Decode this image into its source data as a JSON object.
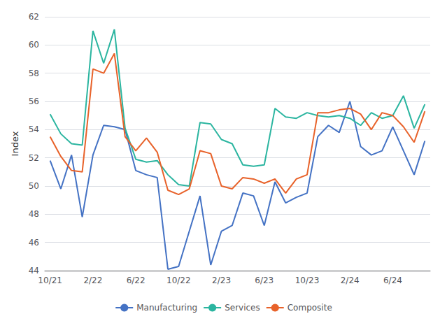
{
  "chart_data": {
    "type": "line",
    "ylabel": "Index",
    "categories": [
      "10/21",
      null,
      null,
      null,
      "2/22",
      null,
      null,
      null,
      "6/22",
      null,
      null,
      null,
      "10/22",
      null,
      null,
      null,
      "2/23",
      null,
      null,
      null,
      "6/23",
      null,
      null,
      null,
      "10/23",
      null,
      null,
      null,
      "2/24",
      null,
      null,
      null,
      "6/24",
      null,
      null,
      null
    ],
    "series": [
      {
        "name": "Manufacturing",
        "color": "#4472C4",
        "values": [
          51.8,
          49.8,
          52.2,
          47.8,
          52.2,
          54.3,
          54.2,
          54.0,
          51.1,
          50.8,
          50.6,
          44.1,
          44.3,
          46.8,
          49.3,
          44.4,
          46.8,
          47.2,
          49.5,
          49.3,
          47.2,
          50.3,
          48.8,
          49.2,
          49.5,
          53.5,
          54.3,
          53.8,
          56.0,
          52.8,
          52.2,
          52.5,
          54.2,
          52.5,
          50.8,
          53.2
        ]
      },
      {
        "name": "Services",
        "color": "#2BB5A0",
        "values": [
          55.1,
          53.7,
          53.0,
          52.9,
          61.0,
          58.7,
          61.1,
          54.1,
          51.9,
          51.7,
          51.8,
          50.8,
          50.1,
          50.0,
          54.5,
          54.4,
          53.3,
          53.0,
          51.5,
          51.4,
          51.5,
          55.5,
          54.9,
          54.8,
          55.2,
          55.0,
          54.9,
          55.0,
          54.8,
          54.3,
          55.2,
          54.8,
          55.0,
          56.4,
          54.1,
          55.8
        ]
      },
      {
        "name": "Composite",
        "color": "#E8622A",
        "values": [
          53.5,
          52.1,
          51.1,
          51.0,
          58.3,
          58.0,
          59.4,
          53.5,
          52.5,
          53.4,
          52.4,
          49.7,
          49.4,
          49.8,
          52.5,
          52.3,
          50.0,
          49.8,
          50.6,
          50.5,
          50.2,
          50.5,
          49.5,
          50.5,
          50.8,
          55.2,
          55.2,
          55.4,
          55.5,
          55.1,
          54.0,
          55.2,
          55.0,
          54.2,
          53.1,
          55.3
        ]
      }
    ],
    "ylim": [
      44,
      62
    ],
    "yticks": [
      44,
      46,
      48,
      50,
      52,
      54,
      56,
      58,
      60,
      62
    ],
    "grid": true,
    "legend": "bottom"
  }
}
